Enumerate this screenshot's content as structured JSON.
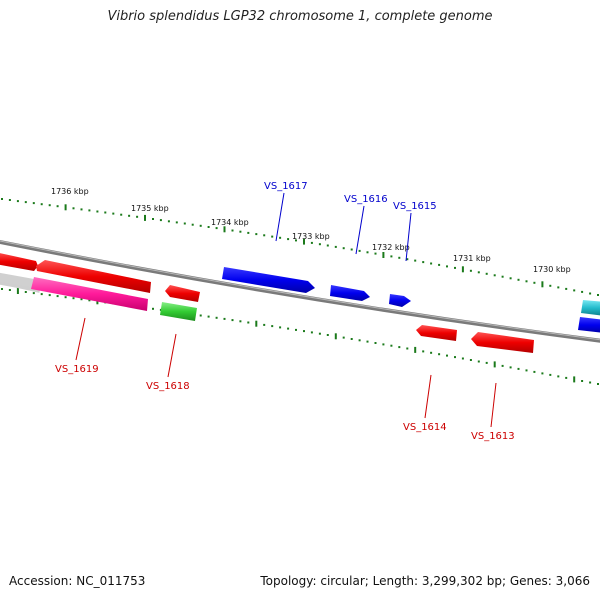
{
  "title": "Vibrio splendidus LGP32 chromosome 1, complete genome",
  "footer": {
    "accession": "Accession: NC_011753",
    "summary": "Topology: circular; Length: 3,299,302 bp; Genes: 3,066"
  },
  "colors": {
    "backbone": "#888888",
    "tick": "#1b7a1b",
    "forward_label": "#0000cc",
    "reverse_label": "#cc0000",
    "red": "#ff0000",
    "magenta": "#ff1a9a",
    "green": "#33cc33",
    "blue": "#0000ee",
    "cyan": "#22bbcc"
  },
  "scale_labels": [
    "1736 kbp",
    "1735 kbp",
    "1734 kbp",
    "1733 kbp",
    "1732 kbp",
    "1731 kbp",
    "1730 kbp"
  ],
  "gene_labels": [
    "VS_1617",
    "VS_1616",
    "VS_1615",
    "VS_1619",
    "VS_1618",
    "VS_1614",
    "VS_1613"
  ]
}
